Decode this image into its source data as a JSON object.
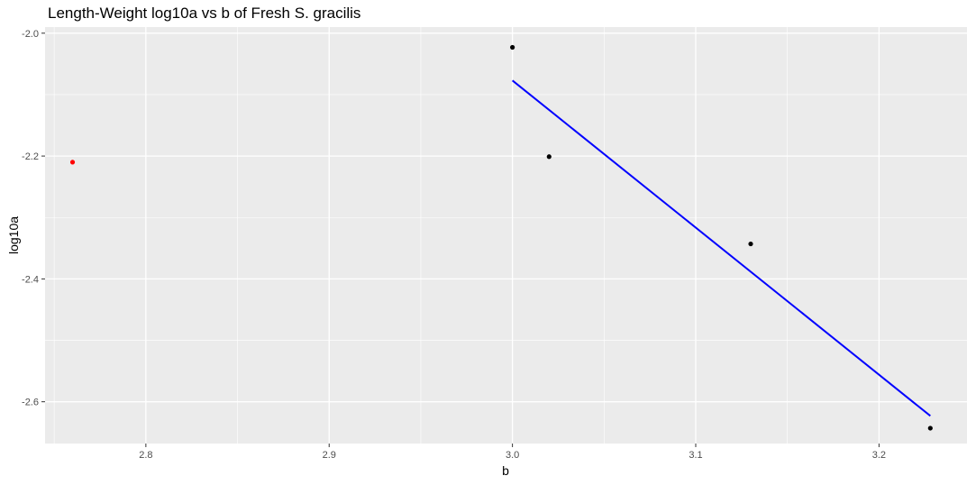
{
  "chart_data": {
    "type": "scatter",
    "title": "Length-Weight log10a vs b of Fresh S. gracilis",
    "xlabel": "b",
    "ylabel": "log10a",
    "xlim": [
      2.745,
      3.248
    ],
    "ylim": [
      -2.668,
      -1.99
    ],
    "x_ticks": [
      2.8,
      2.9,
      3.0,
      3.1,
      3.2
    ],
    "x_tick_labels": [
      "2.8",
      "2.9",
      "3.0",
      "3.1",
      "3.2"
    ],
    "y_ticks": [
      -2.0,
      -2.2,
      -2.4,
      -2.6
    ],
    "y_tick_labels": [
      "-2.0",
      "-2.2",
      "-2.4",
      "-2.6"
    ],
    "grid": true,
    "legend": "none",
    "series": [
      {
        "color": "#000000",
        "points": [
          {
            "x": 3.0,
            "y": -2.023
          },
          {
            "x": 3.02,
            "y": -2.201
          },
          {
            "x": 3.13,
            "y": -2.343
          },
          {
            "x": 3.228,
            "y": -2.643
          }
        ]
      },
      {
        "color": "#ff0000",
        "points": [
          {
            "x": 2.76,
            "y": -2.21
          }
        ]
      }
    ],
    "fit_line": {
      "color": "#0000ff",
      "x": [
        3.0,
        3.228
      ],
      "y": [
        -2.077,
        -2.623
      ]
    }
  }
}
